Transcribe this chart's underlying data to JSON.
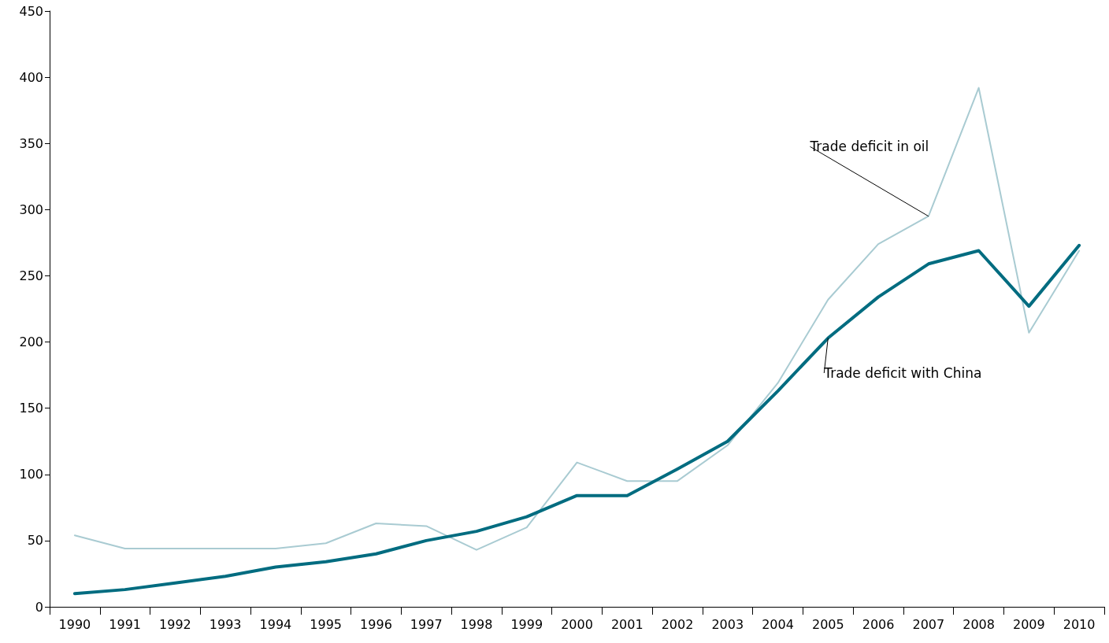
{
  "chart_data": {
    "type": "line",
    "categories": [
      "1990",
      "1991",
      "1992",
      "1993",
      "1994",
      "1995",
      "1996",
      "1997",
      "1998",
      "1999",
      "2000",
      "2001",
      "2002",
      "2003",
      "2004",
      "2005",
      "2006",
      "2007",
      "2008",
      "2009",
      "2010"
    ],
    "series": [
      {
        "name": "Trade deficit in oil",
        "color": "#a9cbd2",
        "values": [
          54,
          44,
          44,
          44,
          44,
          48,
          63,
          61,
          43,
          60,
          109,
          95,
          95,
          122,
          169,
          232,
          274,
          295,
          392,
          207,
          269
        ]
      },
      {
        "name": "Trade deficit with China",
        "color": "#006c80",
        "values": [
          10,
          13,
          18,
          23,
          30,
          34,
          40,
          50,
          57,
          68,
          84,
          84,
          104,
          125,
          163,
          203,
          234,
          259,
          269,
          227,
          273
        ]
      }
    ],
    "ylim": [
      0,
      450
    ],
    "yticks": [
      0,
      50,
      100,
      150,
      200,
      250,
      300,
      350,
      400,
      450
    ],
    "grid": false,
    "legend": false,
    "marker": "none",
    "line_style": "solid"
  }
}
